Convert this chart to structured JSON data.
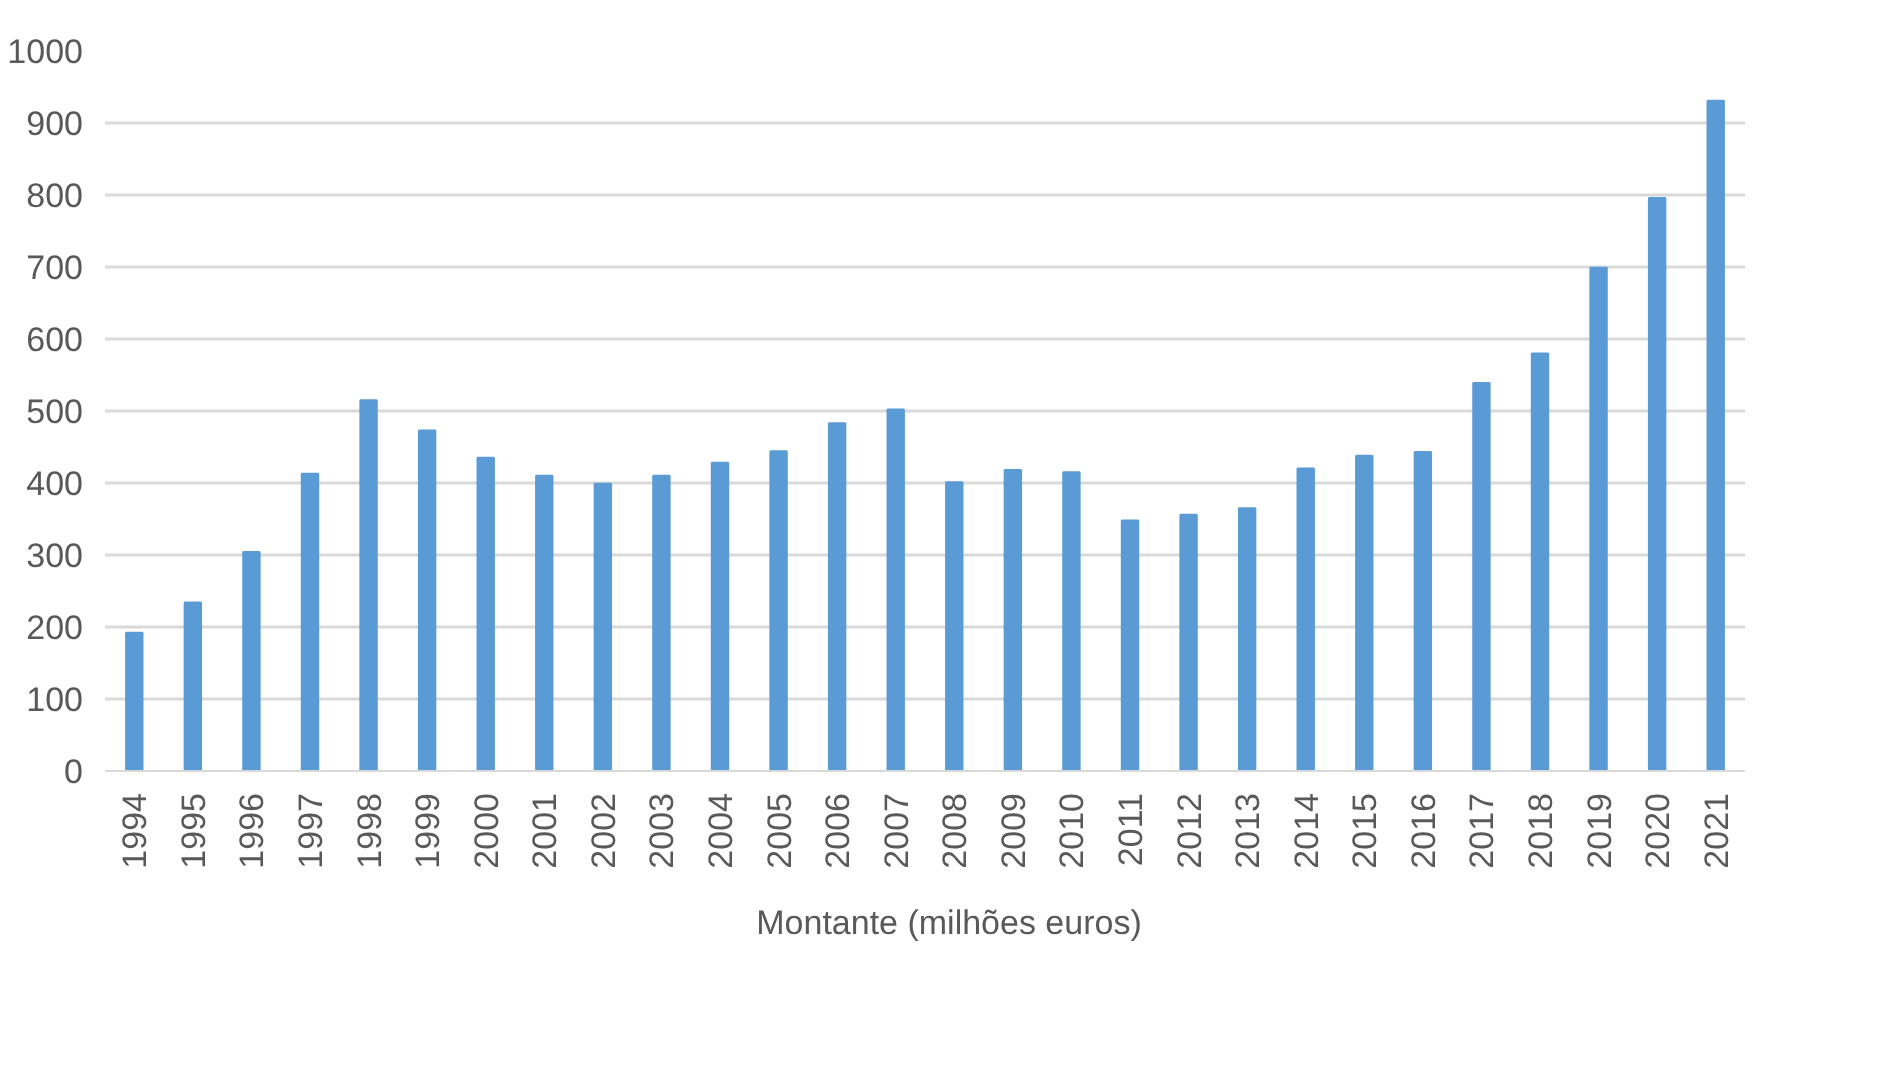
{
  "chart_data": {
    "type": "bar",
    "categories": [
      "1994",
      "1995",
      "1996",
      "1997",
      "1998",
      "1999",
      "2000",
      "2001",
      "2002",
      "2003",
      "2004",
      "2005",
      "2006",
      "2007",
      "2008",
      "2009",
      "2010",
      "2011",
      "2012",
      "2013",
      "2014",
      "2015",
      "2016",
      "2017",
      "2018",
      "2019",
      "2020",
      "2021"
    ],
    "series": [
      {
        "name": "Montante (milhões euros)",
        "color": "#5b9bd5",
        "values": [
          192,
          234,
          304,
          413,
          515,
          473,
          435,
          410,
          399,
          410,
          428,
          444,
          483,
          502,
          401,
          418,
          415,
          348,
          356,
          365,
          420,
          438,
          443,
          539,
          580,
          699,
          796,
          931
        ]
      }
    ],
    "ylim": [
      0,
      1000
    ],
    "yticks": [
      0,
      100,
      200,
      300,
      400,
      500,
      600,
      700,
      800,
      900,
      1000
    ],
    "grid": "y",
    "legend": "bottom"
  }
}
